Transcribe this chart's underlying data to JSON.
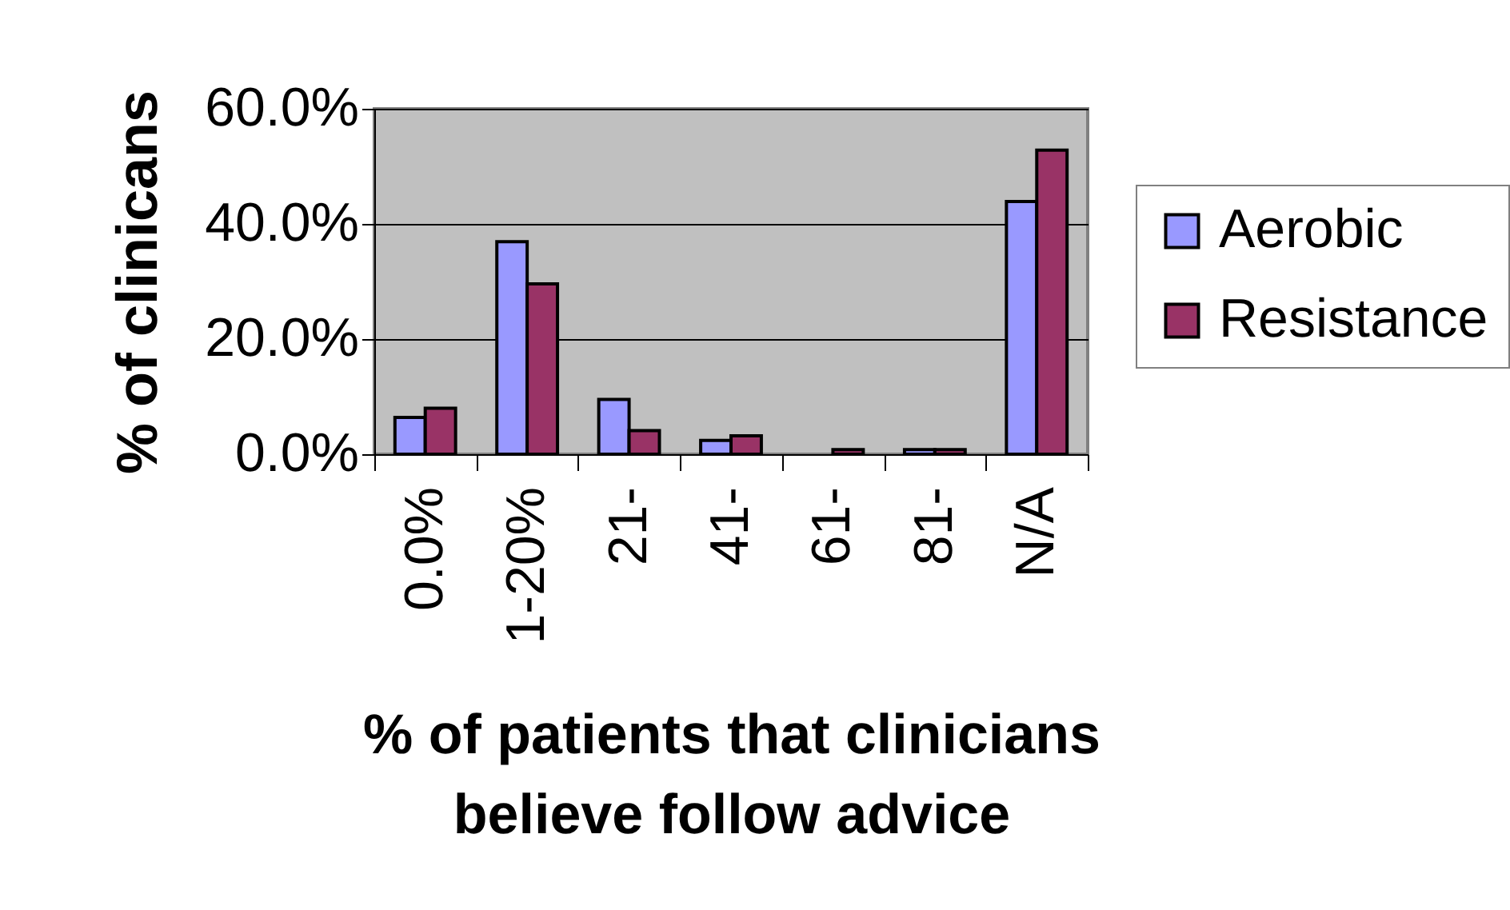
{
  "chart_data": {
    "type": "bar",
    "xlabel": "% of patients that clinicians believe follow advice",
    "ylabel": "% of clinicans",
    "categories": [
      "0.0%",
      "1-20%",
      "21-",
      "41-",
      "61-",
      "81-",
      "N/A"
    ],
    "series": [
      {
        "name": "Aerobic",
        "color": "#9999ff",
        "values": [
          6.4,
          36.9,
          9.5,
          2.4,
          null,
          0.8,
          43.9
        ]
      },
      {
        "name": "Resistance",
        "color": "#993366",
        "values": [
          8.0,
          29.6,
          4.1,
          3.2,
          0.8,
          0.8,
          52.8
        ]
      }
    ],
    "ylim": [
      0,
      60
    ],
    "yticks": [
      {
        "value": 0,
        "label": "0.0%"
      },
      {
        "value": 20,
        "label": "20.0%"
      },
      {
        "value": 40,
        "label": "40.0%"
      },
      {
        "value": 60,
        "label": "60.0%"
      }
    ],
    "grid": "y",
    "legend": "right"
  }
}
